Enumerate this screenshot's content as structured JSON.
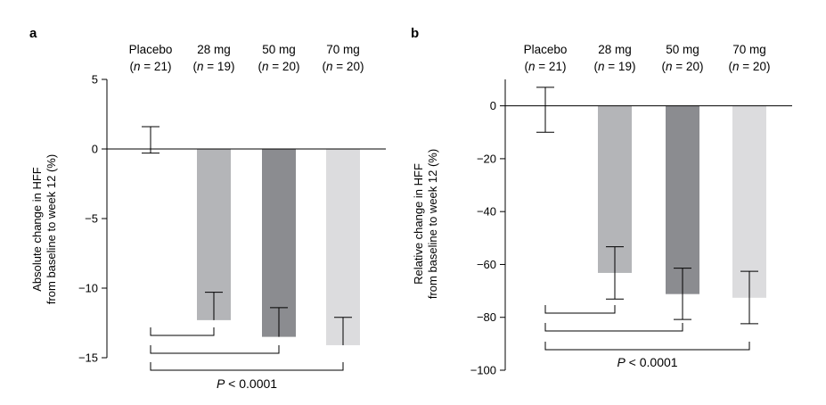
{
  "figure": {
    "panels": [
      {
        "letter": "a",
        "ylabel_line1": "Absolute change in HFF",
        "ylabel_line2": "from baseline to week 12 (%)",
        "pvalue": {
          "italic": "P",
          "rest": " < 0.0001"
        }
      },
      {
        "letter": "b",
        "ylabel_line1": "Relative change in HFF",
        "ylabel_line2": "from baseline to week 12 (%)",
        "pvalue": {
          "italic": "P",
          "rest": " < 0.0001"
        }
      }
    ],
    "groups": [
      {
        "name": "Placebo",
        "n": "21"
      },
      {
        "name": "28 mg",
        "n": "19"
      },
      {
        "name": "50 mg",
        "n": "20"
      },
      {
        "name": "70 mg",
        "n": "20"
      }
    ]
  },
  "chart_data": [
    {
      "type": "bar",
      "panel": "a",
      "categories": [
        "Placebo",
        "28 mg",
        "50 mg",
        "70 mg"
      ],
      "values": [
        0.6,
        -12.3,
        -13.5,
        -14.1
      ],
      "error_upper": [
        1.6,
        -10.3,
        -11.4,
        -12.1
      ],
      "error_lower": [
        -0.3,
        -12.3,
        -13.5,
        -14.1
      ],
      "colors": [
        "#ffffff",
        "#b4b5b8",
        "#8b8c90",
        "#dcdcde"
      ],
      "ylabel": "Absolute change in HFF from baseline to week 12 (%)",
      "ylim": [
        -15,
        5
      ],
      "yticks": [
        5,
        0,
        -5,
        -10,
        -15
      ],
      "ytick_labels": [
        "5",
        "0",
        "−5",
        "−10",
        "−15"
      ],
      "significance": "P < 0.0001",
      "grid": false
    },
    {
      "type": "bar",
      "panel": "b",
      "categories": [
        "Placebo",
        "28 mg",
        "50 mg",
        "70 mg"
      ],
      "values": [
        -1.5,
        -63.2,
        -71.2,
        -72.6
      ],
      "error_upper": [
        7.0,
        -53.3,
        -61.4,
        -62.6
      ],
      "error_lower": [
        -10.0,
        -73.1,
        -80.8,
        -82.4
      ],
      "colors": [
        "#ffffff",
        "#b4b5b8",
        "#8b8c90",
        "#dcdcde"
      ],
      "ylabel": "Relative change in HFF from baseline to week 12 (%)",
      "ylim": [
        -100,
        10
      ],
      "yticks": [
        0,
        -20,
        -40,
        -60,
        -80,
        -100
      ],
      "ytick_labels": [
        "0",
        "−20",
        "−40",
        "−60",
        "−80",
        "−100"
      ],
      "significance": "P < 0.0001",
      "grid": false
    }
  ]
}
